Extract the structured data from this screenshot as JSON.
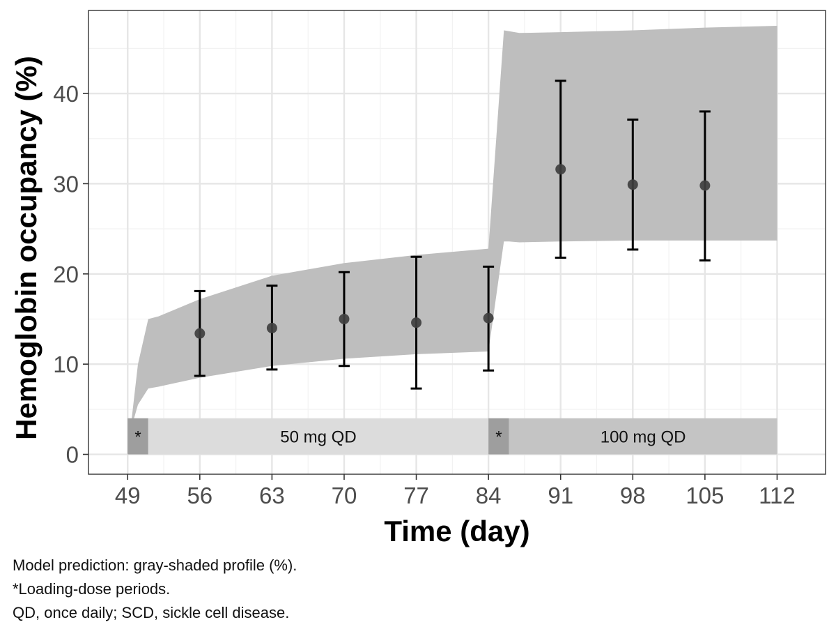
{
  "chart_data": {
    "type": "line",
    "xlabel": "Time (day)",
    "ylabel": "Hemoglobin occupancy (%)",
    "xlim": [
      45.2,
      116.7
    ],
    "ylim": [
      -2.2,
      49.2
    ],
    "x_ticks": [
      49,
      56,
      63,
      70,
      77,
      84,
      91,
      98,
      105,
      112
    ],
    "x_minor_ticks": [
      52.5,
      59.5,
      66.5,
      73.5,
      80.5,
      87.5,
      94.5,
      101.5,
      108.5
    ],
    "y_ticks": [
      0,
      10,
      20,
      30,
      40
    ],
    "y_minor_ticks": [
      5,
      15,
      25,
      35,
      45
    ],
    "grid": true,
    "prediction_band": {
      "name": "Model prediction",
      "color": "#bebebe",
      "x": [
        49,
        49.5,
        50,
        51,
        52,
        56,
        63,
        70,
        77,
        84,
        85.5,
        86,
        87,
        91,
        98,
        105,
        112
      ],
      "lower": [
        0,
        3.5,
        5.5,
        7.3,
        7.5,
        8.5,
        9.8,
        10.6,
        11.1,
        11.4,
        23.6,
        23.6,
        23.5,
        23.6,
        23.7,
        23.7,
        23.7
      ],
      "upper": [
        0,
        5,
        10,
        15.0,
        15.3,
        17.2,
        19.8,
        21.2,
        22.1,
        22.8,
        47.0,
        46.9,
        46.7,
        46.8,
        47.0,
        47.3,
        47.5
      ]
    },
    "observed": {
      "color": "#3f3f3f",
      "points": [
        {
          "x": 56,
          "y": 13.4,
          "lo": 8.7,
          "hi": 18.1
        },
        {
          "x": 63,
          "y": 14.0,
          "lo": 9.4,
          "hi": 18.7
        },
        {
          "x": 70,
          "y": 15.0,
          "lo": 9.8,
          "hi": 20.2
        },
        {
          "x": 77,
          "y": 14.6,
          "lo": 7.3,
          "hi": 21.9
        },
        {
          "x": 84,
          "y": 15.1,
          "lo": 9.3,
          "hi": 20.8
        },
        {
          "x": 91,
          "y": 31.6,
          "lo": 21.8,
          "hi": 41.4
        },
        {
          "x": 98,
          "y": 29.9,
          "lo": 22.7,
          "hi": 37.1
        },
        {
          "x": 105,
          "y": 29.8,
          "lo": 21.5,
          "hi": 38.0
        }
      ]
    },
    "dose_periods": [
      {
        "x0": 49,
        "x1": 51,
        "label": "*",
        "color": "#9e9e9e"
      },
      {
        "x0": 51,
        "x1": 84,
        "label": "50 mg QD",
        "color": "#dcdcdc"
      },
      {
        "x0": 84,
        "x1": 86,
        "label": "*",
        "color": "#9e9e9e"
      },
      {
        "x0": 86,
        "x1": 112,
        "label": "100 mg QD",
        "color": "#c4c4c4"
      }
    ],
    "dose_bar_range": [
      0,
      4
    ],
    "footnotes": [
      "Model prediction: gray-shaded profile (%).",
      "*Loading-dose periods.",
      "QD, once daily; SCD, sickle cell disease."
    ]
  }
}
